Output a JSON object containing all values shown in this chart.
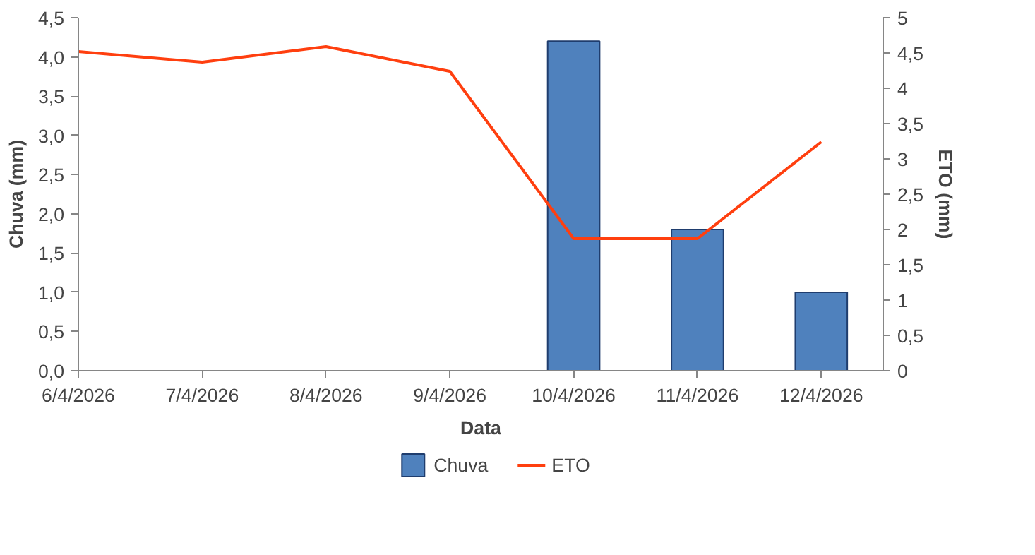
{
  "chart_data": {
    "type": "bar",
    "xlabel": "Data",
    "ylabel": "Chuva (mm)",
    "y2label": "ETO (mm)",
    "x": [
      "2026-04-06",
      "2026-04-07",
      "2026-04-08",
      "2026-04-09",
      "2026-04-10",
      "2026-04-11",
      "2026-04-12"
    ],
    "xlim": [
      "2026-04-06",
      "2026-04-12T12:00"
    ],
    "xticks": [
      {
        "value": "2026-04-06",
        "label": "6/4/2026"
      },
      {
        "value": "2026-04-07",
        "label": "7/4/2026"
      },
      {
        "value": "2026-04-08",
        "label": "8/4/2026"
      },
      {
        "value": "2026-04-09",
        "label": "9/4/2026"
      },
      {
        "value": "2026-04-10",
        "label": "10/4/2026"
      },
      {
        "value": "2026-04-11",
        "label": "11/4/2026"
      },
      {
        "value": "2026-04-12",
        "label": "12/4/2026"
      }
    ],
    "ylim": [
      0,
      4.5
    ],
    "yticks": [
      {
        "value": 0,
        "label": "0,0"
      },
      {
        "value": 0.5,
        "label": "0,5"
      },
      {
        "value": 1,
        "label": "1,0"
      },
      {
        "value": 1.5,
        "label": "1,5"
      },
      {
        "value": 2,
        "label": "2,0"
      },
      {
        "value": 2.5,
        "label": "2,5"
      },
      {
        "value": 3,
        "label": "3,0"
      },
      {
        "value": 3.5,
        "label": "3,5"
      },
      {
        "value": 4,
        "label": "4,0"
      },
      {
        "value": 4.5,
        "label": "4,5"
      }
    ],
    "y2lim": [
      0,
      5
    ],
    "y2ticks": [
      0,
      {
        "value": 0.5,
        "label": "0,5"
      },
      1,
      {
        "value": 1.5,
        "label": "1,5"
      },
      2,
      {
        "value": 2.5,
        "label": "2,5"
      },
      3,
      {
        "value": 3.5,
        "label": "3,5"
      },
      4,
      {
        "value": 4.5,
        "label": "4,5"
      },
      5
    ],
    "series": [
      {
        "name": "Chuva",
        "color": "#4f81bd",
        "values": [
          0,
          0,
          0,
          0,
          4.2,
          1.8,
          1.0
        ]
      },
      {
        "name": "ETO",
        "type": "line",
        "axis": "y2",
        "color": "#ff3f0f",
        "values": [
          4.52,
          4.37,
          4.59,
          4.24,
          1.87,
          1.87,
          3.24
        ]
      }
    ],
    "legend": "bottom"
  }
}
